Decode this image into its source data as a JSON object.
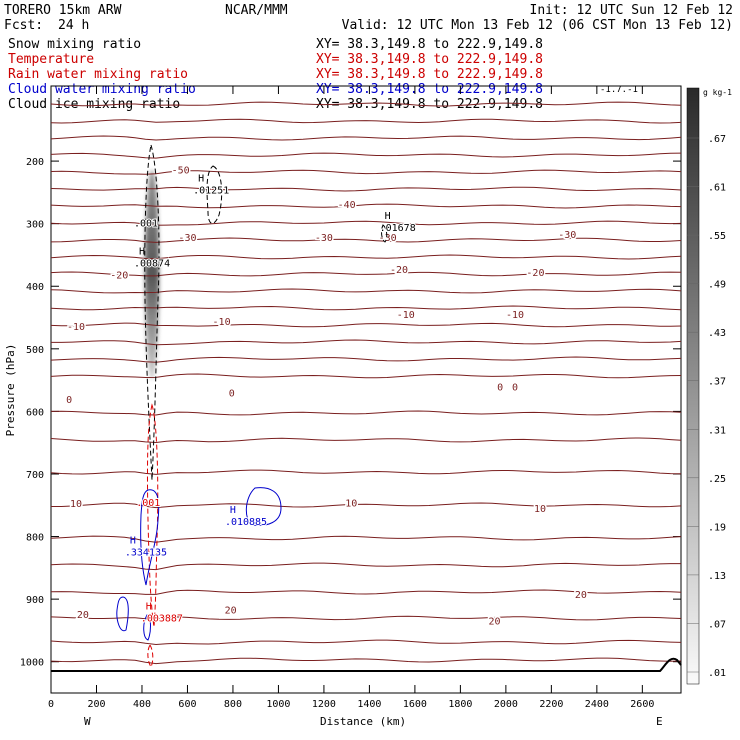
{
  "header": {
    "model": "TORERO  15km ARW",
    "center": "NCAR/MMM",
    "init": "Init: 12 UTC Sun 12 Feb 12",
    "fcst_label": "Fcst:",
    "fcst_value": "24 h",
    "valid": "Valid: 12 UTC Mon 13 Feb 12 (06 CST Mon 13 Feb 12)"
  },
  "fields": [
    {
      "name": "Snow mixing ratio",
      "color": "#000000"
    },
    {
      "name": "Temperature",
      "color": "#cc0000"
    },
    {
      "name": "Rain water mixing ratio",
      "color": "#cc0000"
    },
    {
      "name": "Cloud water mixing ratio",
      "color": "#0000cc"
    },
    {
      "name": "Cloud ice mixing ratio",
      "color": "#000000"
    }
  ],
  "cross_section": "XY=  38.3,149.8 to 222.9,149.8",
  "overlay_fragment": "-1.7.-1",
  "colors": {
    "temp": "#7a1f1f",
    "rain": "#dd0000",
    "cloud": "#0000cc",
    "ice": "#000000",
    "axis": "#000000"
  },
  "chart_data": {
    "type": "contour",
    "title": "Snow mixing ratio",
    "xlabel": "Distance (km)",
    "ylabel": "Pressure (hPa)",
    "xlim": [
      0,
      2770
    ],
    "ylim": [
      1050,
      80
    ],
    "x_ticks": [
      0,
      200,
      400,
      600,
      800,
      1000,
      1200,
      1400,
      1600,
      1800,
      2000,
      2200,
      2400,
      2600
    ],
    "y_ticks": [
      200,
      300,
      400,
      500,
      600,
      700,
      800,
      900,
      1000
    ],
    "x_end_labels": [
      "W",
      "E"
    ],
    "colorbar": {
      "units": "g kg-1",
      "labels": [
        ".67",
        ".61",
        ".55",
        ".49",
        ".43",
        ".37",
        ".31",
        ".25",
        ".19",
        ".13",
        ".07",
        ".01"
      ],
      "min": 0.01,
      "max": 0.7
    },
    "temperature_labels": [
      {
        "x": 570,
        "p": 215,
        "text": "-50"
      },
      {
        "x": 1300,
        "p": 270,
        "text": "-40"
      },
      {
        "x": 1200,
        "p": 323,
        "text": "-30"
      },
      {
        "x": 1480,
        "p": 323,
        "text": "-30"
      },
      {
        "x": 2270,
        "p": 318,
        "text": "-30"
      },
      {
        "x": 600,
        "p": 323,
        "text": "-30"
      },
      {
        "x": 300,
        "p": 383,
        "text": "-20"
      },
      {
        "x": 1530,
        "p": 374,
        "text": "-20"
      },
      {
        "x": 2130,
        "p": 379,
        "text": "-20"
      },
      {
        "x": 110,
        "p": 465,
        "text": "-10"
      },
      {
        "x": 750,
        "p": 457,
        "text": "-10"
      },
      {
        "x": 1560,
        "p": 446,
        "text": "-10"
      },
      {
        "x": 2040,
        "p": 446,
        "text": "-10"
      },
      {
        "x": 80,
        "p": 582,
        "text": "0"
      },
      {
        "x": 795,
        "p": 571,
        "text": "0"
      },
      {
        "x": 1975,
        "p": 562,
        "text": "0"
      },
      {
        "x": 2040,
        "p": 562,
        "text": "0"
      },
      {
        "x": 110,
        "p": 748,
        "text": "10"
      },
      {
        "x": 1320,
        "p": 747,
        "text": "10"
      },
      {
        "x": 2150,
        "p": 756,
        "text": "10"
      },
      {
        "x": 140,
        "p": 925,
        "text": "20"
      },
      {
        "x": 790,
        "p": 918,
        "text": "20"
      },
      {
        "x": 1950,
        "p": 936,
        "text": "20"
      },
      {
        "x": 2330,
        "p": 893,
        "text": "20"
      }
    ],
    "maxima_labels": [
      {
        "x": 660,
        "p": 245,
        "text": "H",
        "value": ".01251",
        "field": "ice"
      },
      {
        "x": 1480,
        "p": 305,
        "text": "H",
        "value": ".01678",
        "field": "ice"
      },
      {
        "x": 400,
        "p": 298,
        "text": "",
        "value": ".001",
        "field": "ice"
      },
      {
        "x": 400,
        "p": 362,
        "text": "H",
        "value": ".00874",
        "field": "snow"
      },
      {
        "x": 410,
        "p": 745,
        "text": "",
        "value": ".001",
        "field": "rain"
      },
      {
        "x": 800,
        "p": 775,
        "text": "H",
        "value": ".010885",
        "field": "cloud"
      },
      {
        "x": 360,
        "p": 824,
        "text": "H",
        "value": ".334135",
        "field": "cloud"
      },
      {
        "x": 430,
        "p": 929,
        "text": "H",
        "value": ".003887",
        "field": "rain"
      }
    ]
  }
}
